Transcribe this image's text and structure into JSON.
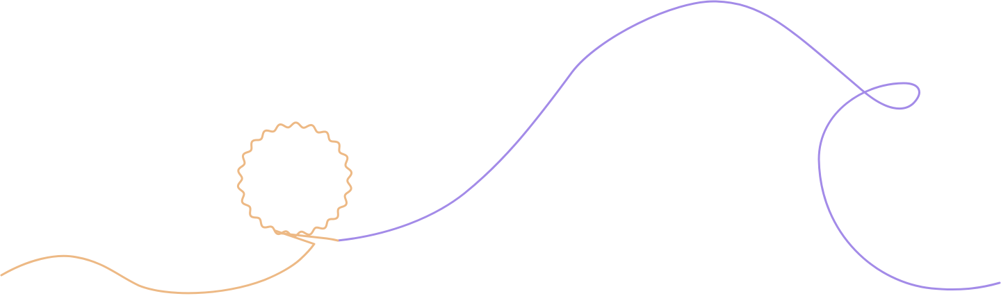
{
  "colors": {
    "background": "#ffffff",
    "orange_line": "#EDB985",
    "purple_line": "#A38BE8"
  },
  "decoration": {
    "orange_line": "wavy-looped-line",
    "purple_line": "looped-wave-line"
  }
}
